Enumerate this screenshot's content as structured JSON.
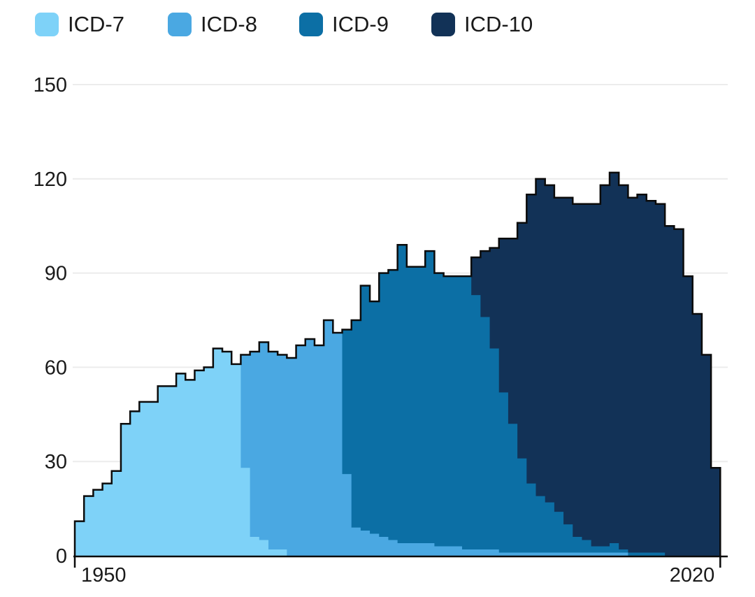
{
  "legend": {
    "items": [
      {
        "label": "ICD-7",
        "color": "#7ED2F8"
      },
      {
        "label": "ICD-8",
        "color": "#4AA8E2"
      },
      {
        "label": "ICD-9",
        "color": "#0C6FA5"
      },
      {
        "label": "ICD-10",
        "color": "#123257"
      }
    ]
  },
  "axes": {
    "y_tick_labels": [
      "0",
      "30",
      "60",
      "90",
      "120",
      "150"
    ],
    "x_tick_labels": [
      "1950",
      "2020"
    ]
  },
  "chart_data": {
    "type": "area",
    "variant": "stacked-step",
    "title": "",
    "xlabel": "",
    "ylabel": "",
    "x_start": 1950,
    "x_end": 2020,
    "x": [
      1950,
      1951,
      1952,
      1953,
      1954,
      1955,
      1956,
      1957,
      1958,
      1959,
      1960,
      1961,
      1962,
      1963,
      1964,
      1965,
      1966,
      1967,
      1968,
      1969,
      1970,
      1971,
      1972,
      1973,
      1974,
      1975,
      1976,
      1977,
      1978,
      1979,
      1980,
      1981,
      1982,
      1983,
      1984,
      1985,
      1986,
      1987,
      1988,
      1989,
      1990,
      1991,
      1992,
      1993,
      1994,
      1995,
      1996,
      1997,
      1998,
      1999,
      2000,
      2001,
      2002,
      2003,
      2004,
      2005,
      2006,
      2007,
      2008,
      2009,
      2010,
      2011,
      2012,
      2013,
      2014,
      2015,
      2016,
      2017,
      2018,
      2019
    ],
    "series": [
      {
        "name": "ICD-7",
        "color": "#7ED2F8",
        "values": [
          11,
          19,
          21,
          23,
          27,
          42,
          46,
          49,
          49,
          54,
          54,
          58,
          56,
          59,
          60,
          66,
          65,
          61,
          28,
          6,
          5,
          2,
          2,
          0,
          0,
          0,
          0,
          0,
          0,
          0,
          0,
          0,
          0,
          0,
          0,
          0,
          0,
          0,
          0,
          0,
          0,
          0,
          0,
          0,
          0,
          0,
          0,
          0,
          0,
          0,
          0,
          0,
          0,
          0,
          0,
          0,
          0,
          0,
          0,
          0,
          0,
          0,
          0,
          0,
          0,
          0,
          0,
          0,
          0,
          0
        ]
      },
      {
        "name": "ICD-8",
        "color": "#4AA8E2",
        "values": [
          0,
          0,
          0,
          0,
          0,
          0,
          0,
          0,
          0,
          0,
          0,
          0,
          0,
          0,
          0,
          0,
          0,
          0,
          36,
          59,
          63,
          63,
          62,
          63,
          67,
          69,
          67,
          75,
          71,
          26,
          9,
          8,
          7,
          6,
          5,
          4,
          4,
          4,
          4,
          3,
          3,
          3,
          2,
          2,
          2,
          2,
          1,
          1,
          1,
          1,
          1,
          1,
          1,
          1,
          1,
          1,
          1,
          1,
          1,
          1,
          0,
          0,
          0,
          0,
          0,
          0,
          0,
          0,
          0,
          0
        ]
      },
      {
        "name": "ICD-9",
        "color": "#0C6FA5",
        "values": [
          0,
          0,
          0,
          0,
          0,
          0,
          0,
          0,
          0,
          0,
          0,
          0,
          0,
          0,
          0,
          0,
          0,
          0,
          0,
          0,
          0,
          0,
          0,
          0,
          0,
          0,
          0,
          0,
          0,
          46,
          66,
          78,
          74,
          84,
          86,
          95,
          88,
          88,
          93,
          87,
          86,
          86,
          87,
          81,
          74,
          64,
          51,
          41,
          30,
          22,
          18,
          16,
          13,
          9,
          5,
          4,
          2,
          2,
          3,
          1,
          1,
          1,
          1,
          1,
          0,
          0,
          0,
          0,
          0,
          0
        ]
      },
      {
        "name": "ICD-10",
        "color": "#123257",
        "values": [
          0,
          0,
          0,
          0,
          0,
          0,
          0,
          0,
          0,
          0,
          0,
          0,
          0,
          0,
          0,
          0,
          0,
          0,
          0,
          0,
          0,
          0,
          0,
          0,
          0,
          0,
          0,
          0,
          0,
          0,
          0,
          0,
          0,
          0,
          0,
          0,
          0,
          0,
          0,
          0,
          0,
          0,
          0,
          12,
          21,
          32,
          49,
          59,
          75,
          92,
          101,
          101,
          100,
          104,
          106,
          107,
          109,
          115,
          118,
          116,
          113,
          114,
          112,
          111,
          105,
          104,
          89,
          77,
          64,
          28
        ]
      }
    ],
    "ylim": [
      0,
      150
    ],
    "yticks": [
      0,
      30,
      60,
      90,
      120,
      150
    ],
    "xticks": [
      1950,
      2020
    ],
    "grid": "horizontal",
    "gridline_color": "#ececec",
    "outline_color": "#0b0b0b",
    "axis_color": "#0b0b0b",
    "legend_position": "top-left"
  }
}
